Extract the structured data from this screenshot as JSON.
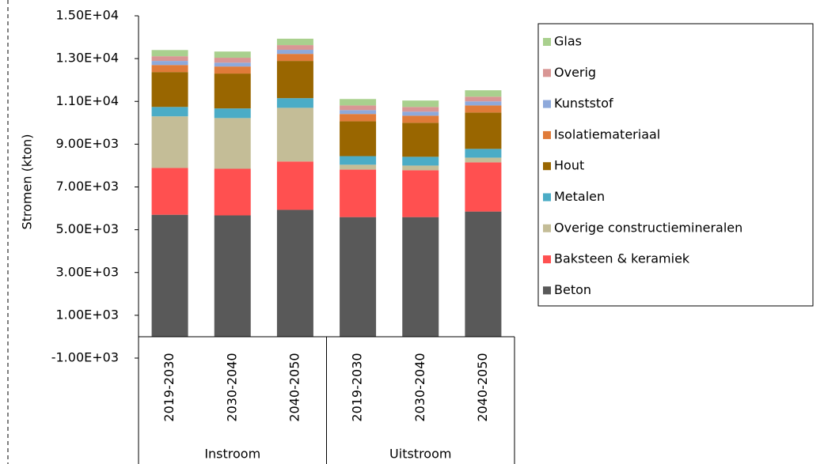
{
  "chart_data": {
    "type": "stacked_bar",
    "ylabel": "Stromen (kton)",
    "groups": [
      {
        "label": "Instroom",
        "categories": [
          "2019-2030",
          "2030-2040",
          "2040-2050"
        ]
      },
      {
        "label": "Uitstroom",
        "categories": [
          "2019-2030",
          "2030-2040",
          "2040-2050"
        ]
      }
    ],
    "series": [
      {
        "name": "Beton",
        "color": "#595959",
        "values": [
          5700,
          5670,
          5930,
          5590,
          5590,
          5850
        ]
      },
      {
        "name": "Baksteen & keramiek",
        "color": "#ff5050",
        "values": [
          2190,
          2180,
          2260,
          2220,
          2190,
          2300
        ]
      },
      {
        "name": "Overige constructiemineralen",
        "color": "#c4bd97",
        "values": [
          2410,
          2370,
          2510,
          230,
          220,
          220
        ]
      },
      {
        "name": "Metalen",
        "color": "#4bacc6",
        "values": [
          440,
          450,
          450,
          400,
          410,
          410
        ]
      },
      {
        "name": "Hout",
        "color": "#996600",
        "values": [
          1630,
          1630,
          1740,
          1630,
          1590,
          1700
        ]
      },
      {
        "name": "Isolatiemateriaal",
        "color": "#e07b39",
        "values": [
          330,
          330,
          330,
          340,
          330,
          330
        ]
      },
      {
        "name": "Kunststof",
        "color": "#8ea9db",
        "values": [
          190,
          180,
          190,
          180,
          190,
          190
        ]
      },
      {
        "name": "Overig",
        "color": "#d99694",
        "values": [
          220,
          230,
          220,
          220,
          220,
          220
        ]
      },
      {
        "name": "Glas",
        "color": "#a9d08e",
        "values": [
          290,
          290,
          300,
          300,
          300,
          300
        ]
      }
    ],
    "ylim": [
      -1000,
      15000
    ],
    "yticks": [
      {
        "value": -1000,
        "label": "-1.00E+03"
      },
      {
        "value": 1000,
        "label": "1.00E+03"
      },
      {
        "value": 3000,
        "label": "3.00E+03"
      },
      {
        "value": 5000,
        "label": "5.00E+03"
      },
      {
        "value": 7000,
        "label": "7.00E+03"
      },
      {
        "value": 9000,
        "label": "9.00E+03"
      },
      {
        "value": 11000,
        "label": "1.10E+04"
      },
      {
        "value": 13000,
        "label": "1.30E+04"
      },
      {
        "value": 15000,
        "label": "1.50E+04"
      }
    ],
    "legend": "right"
  }
}
